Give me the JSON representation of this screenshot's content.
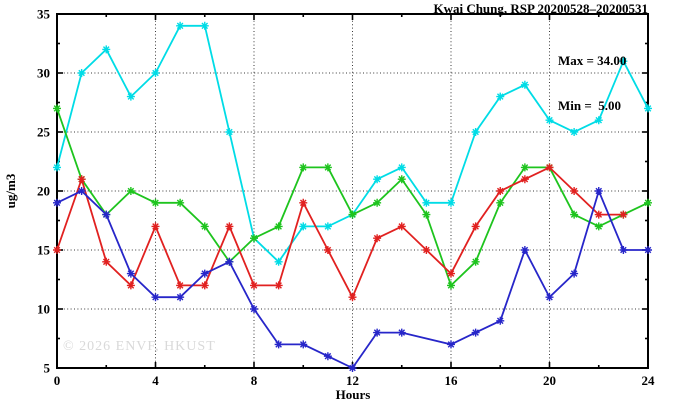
{
  "title": "Kwai Chung, RSP 20200528–20200531",
  "annotation": {
    "max_label": "Max = 34.00",
    "min_label": "Min =  5.00"
  },
  "watermark": "© 2026 ENVF, HKUST",
  "chart_data": {
    "type": "line",
    "title": "Kwai Chung, RSP 20200528–20200531",
    "xlabel": "Hours",
    "ylabel": "ug/m3",
    "xlim": [
      0,
      24
    ],
    "ylim": [
      5,
      35
    ],
    "x_major_ticks": [
      0,
      4,
      8,
      12,
      16,
      20,
      24
    ],
    "x_minor_step": 2,
    "y_major_ticks": [
      5,
      10,
      15,
      20,
      25,
      30,
      35
    ],
    "y_minor_step": 2.5,
    "grid": true,
    "legend": "none",
    "marker": "asterisk",
    "max_value": 34.0,
    "min_value": 5.0,
    "x": [
      0,
      1,
      2,
      3,
      4,
      5,
      6,
      7,
      8,
      9,
      10,
      11,
      12,
      13,
      14,
      15,
      16,
      17,
      18,
      19,
      20,
      21,
      22,
      23,
      24
    ],
    "series": [
      {
        "name": "series-cyan",
        "color": "#00dce6",
        "values": [
          22,
          30,
          32,
          28,
          30,
          34,
          34,
          25,
          16,
          14,
          17,
          17,
          18,
          21,
          22,
          19,
          19,
          25,
          28,
          29,
          26,
          25,
          26,
          31,
          27
        ]
      },
      {
        "name": "series-green",
        "color": "#1ec41e",
        "values": [
          27,
          21,
          18,
          20,
          19,
          19,
          17,
          14,
          16,
          17,
          22,
          22,
          18,
          19,
          21,
          18,
          12,
          14,
          19,
          22,
          22,
          18,
          17,
          18,
          19
        ]
      },
      {
        "name": "series-red",
        "color": "#e12120",
        "values": [
          15,
          21,
          14,
          12,
          17,
          12,
          12,
          17,
          12,
          12,
          19,
          15,
          11,
          16,
          17,
          15,
          13,
          17,
          20,
          21,
          22,
          20,
          18,
          18,
          null
        ]
      },
      {
        "name": "series-blue",
        "color": "#2726c9",
        "values": [
          19,
          20,
          18,
          13,
          11,
          11,
          13,
          14,
          10,
          7,
          7,
          6,
          5,
          8,
          8,
          null,
          7,
          8,
          9,
          15,
          11,
          13,
          20,
          15,
          15
        ]
      }
    ]
  }
}
